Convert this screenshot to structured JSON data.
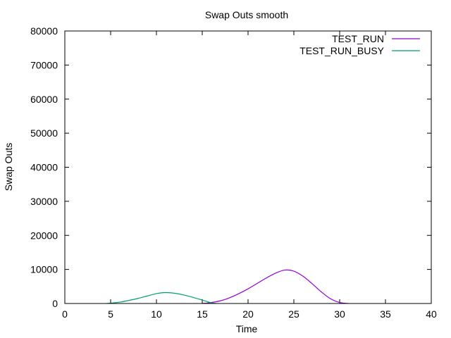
{
  "chart_data": {
    "type": "line",
    "title": "Swap Outs smooth",
    "xlabel": "Time",
    "ylabel": "Swap Outs",
    "xlim": [
      0,
      40
    ],
    "ylim": [
      0,
      80000
    ],
    "xticks": [
      0,
      5,
      10,
      15,
      20,
      25,
      30,
      35,
      40
    ],
    "yticks": [
      0,
      10000,
      20000,
      30000,
      40000,
      50000,
      60000,
      70000,
      80000
    ],
    "grid": false,
    "legend_position": "top-right",
    "series": [
      {
        "name": "TEST_RUN",
        "color": "#9400d3",
        "x": [
          15,
          16,
          17,
          18,
          19,
          20,
          21,
          22,
          23,
          24,
          25,
          26,
          27,
          28,
          29,
          30,
          31
        ],
        "y": [
          0,
          300,
          800,
          1700,
          2900,
          4300,
          5900,
          7500,
          8900,
          9800,
          9500,
          8000,
          5800,
          3400,
          1400,
          300,
          0
        ]
      },
      {
        "name": "TEST_RUN_BUSY",
        "color": "#009e73",
        "x": [
          4.5,
          5,
          6,
          7,
          8,
          9,
          10,
          11,
          12,
          13,
          14,
          15,
          15.5,
          16,
          16.5
        ],
        "y": [
          0,
          100,
          400,
          900,
          1500,
          2200,
          2900,
          3200,
          3000,
          2500,
          1800,
          1000,
          600,
          200,
          0
        ]
      }
    ]
  }
}
